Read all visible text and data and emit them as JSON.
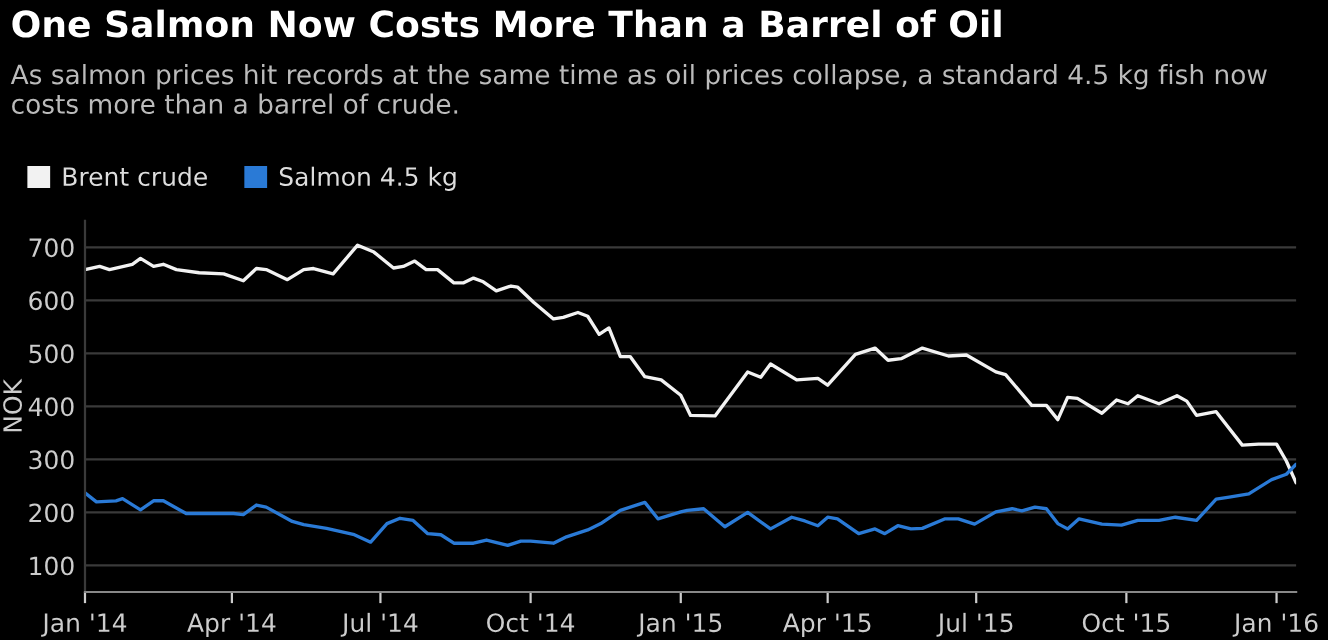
{
  "chart_data": {
    "type": "line",
    "title": "One Salmon Now Costs More Than a Barrel of Oil",
    "subtitle": "As salmon prices hit records at the same time as oil prices collapse, a standard 4.5 kg fish now costs more than a barrel of crude.",
    "ylabel": "NOK",
    "xlim": [
      "2014-01-01",
      "2016-01-13"
    ],
    "ylim": [
      50,
      750
    ],
    "xticks": [
      {
        "value": "2014-01-01",
        "label": "Jan '14"
      },
      {
        "value": "2014-04-01",
        "label": "Apr '14"
      },
      {
        "value": "2014-07-01",
        "label": "Jul '14"
      },
      {
        "value": "2014-10-01",
        "label": "Oct '14"
      },
      {
        "value": "2015-01-01",
        "label": "Jan '15"
      },
      {
        "value": "2015-04-01",
        "label": "Apr '15"
      },
      {
        "value": "2015-07-01",
        "label": "Jul '15"
      },
      {
        "value": "2015-10-01",
        "label": "Oct '15"
      },
      {
        "value": "2016-01-01",
        "label": "Jan '16"
      }
    ],
    "yticks": [
      100,
      200,
      300,
      400,
      500,
      600,
      700
    ],
    "grid": "y",
    "legend": "top left",
    "marker": "none",
    "line_style": "solid",
    "series": [
      {
        "name": "Brent crude",
        "color": "#f2f2f2",
        "x": [
          "2014-01-01",
          "2014-01-10",
          "2014-01-16",
          "2014-01-30",
          "2014-02-04",
          "2014-02-12",
          "2014-02-18",
          "2014-02-26",
          "2014-03-12",
          "2014-03-27",
          "2014-04-08",
          "2014-04-16",
          "2014-04-22",
          "2014-05-05",
          "2014-05-15",
          "2014-05-21",
          "2014-06-02",
          "2014-06-17",
          "2014-06-27",
          "2014-07-09",
          "2014-07-15",
          "2014-07-22",
          "2014-07-29",
          "2014-08-05",
          "2014-08-15",
          "2014-08-21",
          "2014-08-27",
          "2014-09-02",
          "2014-09-10",
          "2014-09-19",
          "2014-09-23",
          "2014-10-03",
          "2014-10-15",
          "2014-10-21",
          "2014-10-30",
          "2014-11-05",
          "2014-11-12",
          "2014-11-18",
          "2014-11-25",
          "2014-12-01",
          "2014-12-10",
          "2014-12-20",
          "2015-01-01",
          "2015-01-07",
          "2015-01-22",
          "2015-02-11",
          "2015-02-19",
          "2015-02-25",
          "2015-03-13",
          "2015-03-26",
          "2015-04-01",
          "2015-04-18",
          "2015-04-30",
          "2015-05-08",
          "2015-05-16",
          "2015-05-29",
          "2015-06-14",
          "2015-06-25",
          "2015-07-13",
          "2015-07-19",
          "2015-08-04",
          "2015-08-13",
          "2015-08-20",
          "2015-08-26",
          "2015-09-01",
          "2015-09-16",
          "2015-09-25",
          "2015-10-02",
          "2015-10-08",
          "2015-10-21",
          "2015-11-01",
          "2015-11-07",
          "2015-11-13",
          "2015-11-25",
          "2015-12-11",
          "2015-12-21",
          "2016-01-01",
          "2016-01-07",
          "2016-01-13"
        ],
        "values": [
          658,
          664,
          658,
          668,
          679,
          664,
          668,
          658,
          652,
          650,
          637,
          660,
          658,
          639,
          658,
          660,
          650,
          704,
          691,
          661,
          664,
          674,
          658,
          658,
          633,
          633,
          642,
          635,
          618,
          627,
          625,
          596,
          565,
          568,
          577,
          570,
          536,
          548,
          494,
          494,
          456,
          450,
          421,
          383,
          382,
          465,
          455,
          480,
          450,
          453,
          440,
          498,
          510,
          487,
          490,
          510,
          495,
          497,
          465,
          460,
          402,
          402,
          375,
          417,
          415,
          387,
          412,
          405,
          420,
          405,
          420,
          410,
          383,
          390,
          327,
          329,
          329,
          297,
          256
        ]
      },
      {
        "name": "Salmon 4.5 kg",
        "color": "#2a7ad6",
        "x": [
          "2014-01-01",
          "2014-01-08",
          "2014-01-20",
          "2014-01-24",
          "2014-02-04",
          "2014-02-12",
          "2014-02-18",
          "2014-03-04",
          "2014-04-02",
          "2014-04-08",
          "2014-04-16",
          "2014-04-22",
          "2014-05-08",
          "2014-05-15",
          "2014-05-29",
          "2014-06-15",
          "2014-06-25",
          "2014-07-05",
          "2014-07-13",
          "2014-07-21",
          "2014-07-30",
          "2014-08-07",
          "2014-08-15",
          "2014-08-27",
          "2014-09-04",
          "2014-09-17",
          "2014-09-25",
          "2014-10-01",
          "2014-10-15",
          "2014-10-23",
          "2014-11-05",
          "2014-11-13",
          "2014-11-25",
          "2014-12-10",
          "2014-12-18",
          "2015-01-01",
          "2015-01-05",
          "2015-01-15",
          "2015-01-28",
          "2015-02-11",
          "2015-02-25",
          "2015-03-10",
          "2015-03-18",
          "2015-03-26",
          "2015-04-01",
          "2015-04-07",
          "2015-04-20",
          "2015-04-30",
          "2015-05-06",
          "2015-05-14",
          "2015-05-22",
          "2015-05-29",
          "2015-06-12",
          "2015-06-20",
          "2015-06-30",
          "2015-07-13",
          "2015-07-23",
          "2015-07-29",
          "2015-08-06",
          "2015-08-13",
          "2015-08-20",
          "2015-08-26",
          "2015-09-02",
          "2015-09-16",
          "2015-09-28",
          "2015-10-08",
          "2015-10-21",
          "2015-10-31",
          "2015-11-13",
          "2015-11-25",
          "2015-12-03",
          "2015-12-15",
          "2015-12-29",
          "2016-01-07",
          "2016-01-13"
        ],
        "values": [
          237,
          220,
          222,
          226,
          205,
          222,
          222,
          198,
          198,
          196,
          214,
          210,
          183,
          177,
          170,
          158,
          144,
          179,
          189,
          185,
          160,
          158,
          142,
          142,
          148,
          138,
          146,
          146,
          142,
          154,
          167,
          179,
          204,
          219,
          188,
          201,
          204,
          207,
          173,
          200,
          169,
          191,
          184,
          175,
          191,
          188,
          160,
          169,
          160,
          175,
          169,
          170,
          188,
          188,
          178,
          201,
          207,
          203,
          210,
          207,
          179,
          169,
          188,
          178,
          176,
          185,
          185,
          191,
          185,
          225,
          229,
          235,
          262,
          272,
          291
        ]
      }
    ]
  }
}
